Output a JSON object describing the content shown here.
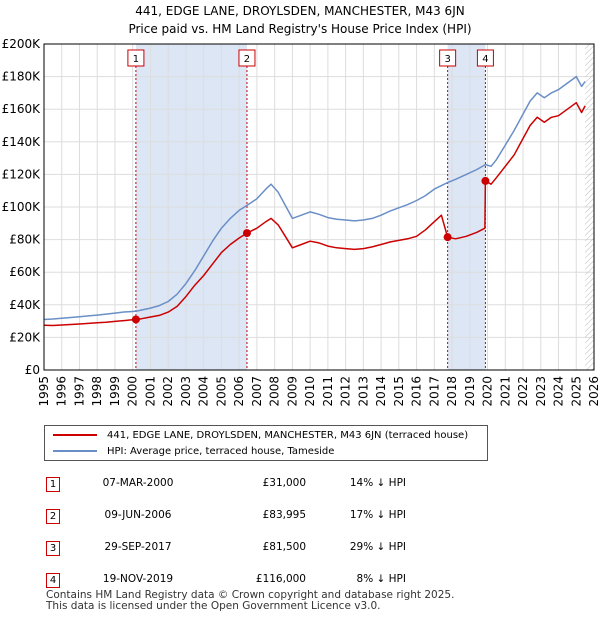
{
  "title": {
    "line1": "441, EDGE LANE, DROYLSDEN, MANCHESTER, M43 6JN",
    "line2": "Price paid vs. HM Land Registry's House Price Index (HPI)"
  },
  "colors": {
    "property": "#cc0000",
    "hpi": "#6a8fc7",
    "shade": "#dce6f5",
    "grid": "#dddddd",
    "marker": "#cc0000"
  },
  "chart_data": {
    "type": "line",
    "title": "Price paid vs. HM Land Registry's House Price Index (HPI)",
    "xlabel": "",
    "ylabel": "",
    "xlim": [
      1995,
      2026
    ],
    "ylim": [
      0,
      200000
    ],
    "grid": true,
    "x_ticks": [
      "1995",
      "1996",
      "1997",
      "1998",
      "1999",
      "2000",
      "2001",
      "2002",
      "2003",
      "2004",
      "2005",
      "2006",
      "2007",
      "2008",
      "2009",
      "2010",
      "2011",
      "2012",
      "2013",
      "2014",
      "2015",
      "2016",
      "2017",
      "2018",
      "2019",
      "2020",
      "2021",
      "2022",
      "2023",
      "2024",
      "2025",
      "2026"
    ],
    "y_ticks": [
      {
        "value": 0,
        "label": "£0"
      },
      {
        "value": 20000,
        "label": "£20K"
      },
      {
        "value": 40000,
        "label": "£40K"
      },
      {
        "value": 60000,
        "label": "£60K"
      },
      {
        "value": 80000,
        "label": "£80K"
      },
      {
        "value": 100000,
        "label": "£100K"
      },
      {
        "value": 120000,
        "label": "£120K"
      },
      {
        "value": 140000,
        "label": "£140K"
      },
      {
        "value": 160000,
        "label": "£160K"
      },
      {
        "value": 180000,
        "label": "£180K"
      },
      {
        "value": 200000,
        "label": "£200K"
      }
    ],
    "shaded_ranges": [
      [
        2000.18,
        2006.44
      ],
      [
        2017.75,
        2019.88
      ]
    ],
    "future_hatch_from": 2025.5,
    "series": [
      {
        "name": "441, EDGE LANE, DROYLSDEN, MANCHESTER, M43 6JN (terraced house)",
        "color": "#cc0000",
        "points": [
          [
            1995.0,
            27500
          ],
          [
            1995.5,
            27300
          ],
          [
            1996.0,
            27600
          ],
          [
            1996.5,
            27900
          ],
          [
            1997.0,
            28200
          ],
          [
            1997.5,
            28600
          ],
          [
            1998.0,
            29000
          ],
          [
            1998.5,
            29300
          ],
          [
            1999.0,
            29800
          ],
          [
            1999.5,
            30300
          ],
          [
            2000.18,
            31000
          ],
          [
            2000.5,
            31500
          ],
          [
            2001.0,
            32500
          ],
          [
            2001.5,
            33500
          ],
          [
            2002.0,
            35500
          ],
          [
            2002.5,
            39000
          ],
          [
            2003.0,
            45000
          ],
          [
            2003.5,
            52000
          ],
          [
            2004.0,
            58000
          ],
          [
            2004.5,
            65000
          ],
          [
            2005.0,
            72000
          ],
          [
            2005.5,
            77000
          ],
          [
            2006.0,
            81000
          ],
          [
            2006.44,
            83995
          ],
          [
            2007.0,
            87000
          ],
          [
            2007.5,
            91000
          ],
          [
            2007.8,
            93000
          ],
          [
            2008.2,
            89000
          ],
          [
            2008.6,
            82000
          ],
          [
            2009.0,
            75000
          ],
          [
            2009.5,
            77000
          ],
          [
            2010.0,
            79000
          ],
          [
            2010.5,
            78000
          ],
          [
            2011.0,
            76000
          ],
          [
            2011.5,
            75000
          ],
          [
            2012.0,
            74500
          ],
          [
            2012.5,
            74000
          ],
          [
            2013.0,
            74500
          ],
          [
            2013.5,
            75500
          ],
          [
            2014.0,
            77000
          ],
          [
            2014.5,
            78500
          ],
          [
            2015.0,
            79500
          ],
          [
            2015.5,
            80500
          ],
          [
            2016.0,
            82000
          ],
          [
            2016.5,
            86000
          ],
          [
            2017.0,
            91000
          ],
          [
            2017.4,
            95000
          ],
          [
            2017.75,
            81500
          ],
          [
            2018.2,
            80500
          ],
          [
            2018.8,
            82000
          ],
          [
            2019.4,
            84500
          ],
          [
            2019.85,
            87000
          ],
          [
            2019.88,
            116000
          ],
          [
            2020.2,
            114000
          ],
          [
            2020.5,
            118000
          ],
          [
            2021.0,
            125000
          ],
          [
            2021.5,
            132000
          ],
          [
            2022.0,
            142000
          ],
          [
            2022.4,
            150000
          ],
          [
            2022.8,
            155000
          ],
          [
            2023.2,
            152000
          ],
          [
            2023.6,
            155000
          ],
          [
            2024.0,
            156000
          ],
          [
            2024.5,
            160000
          ],
          [
            2025.0,
            164000
          ],
          [
            2025.3,
            158000
          ],
          [
            2025.5,
            162000
          ]
        ]
      },
      {
        "name": "HPI: Average price, terraced house, Tameside",
        "color": "#6a8fc7",
        "points": [
          [
            1995.0,
            31000
          ],
          [
            1995.5,
            31300
          ],
          [
            1996.0,
            31800
          ],
          [
            1996.5,
            32200
          ],
          [
            1997.0,
            32700
          ],
          [
            1997.5,
            33200
          ],
          [
            1998.0,
            33700
          ],
          [
            1998.5,
            34300
          ],
          [
            1999.0,
            34900
          ],
          [
            1999.5,
            35600
          ],
          [
            2000.18,
            36000
          ],
          [
            2000.5,
            36800
          ],
          [
            2001.0,
            38000
          ],
          [
            2001.5,
            39500
          ],
          [
            2002.0,
            42000
          ],
          [
            2002.5,
            46500
          ],
          [
            2003.0,
            53000
          ],
          [
            2003.5,
            61000
          ],
          [
            2004.0,
            70000
          ],
          [
            2004.5,
            79000
          ],
          [
            2005.0,
            87000
          ],
          [
            2005.5,
            93000
          ],
          [
            2006.0,
            98000
          ],
          [
            2006.44,
            101000
          ],
          [
            2007.0,
            105000
          ],
          [
            2007.5,
            111000
          ],
          [
            2007.8,
            114000
          ],
          [
            2008.2,
            109000
          ],
          [
            2008.6,
            101000
          ],
          [
            2009.0,
            93000
          ],
          [
            2009.5,
            95000
          ],
          [
            2010.0,
            97000
          ],
          [
            2010.5,
            95500
          ],
          [
            2011.0,
            93500
          ],
          [
            2011.5,
            92500
          ],
          [
            2012.0,
            92000
          ],
          [
            2012.5,
            91500
          ],
          [
            2013.0,
            92000
          ],
          [
            2013.5,
            93000
          ],
          [
            2014.0,
            95000
          ],
          [
            2014.5,
            97500
          ],
          [
            2015.0,
            99500
          ],
          [
            2015.5,
            101500
          ],
          [
            2016.0,
            104000
          ],
          [
            2016.5,
            107000
          ],
          [
            2017.0,
            111000
          ],
          [
            2017.75,
            115000
          ],
          [
            2018.2,
            117000
          ],
          [
            2018.8,
            120000
          ],
          [
            2019.4,
            123000
          ],
          [
            2019.88,
            126000
          ],
          [
            2020.2,
            125000
          ],
          [
            2020.5,
            129000
          ],
          [
            2021.0,
            138000
          ],
          [
            2021.5,
            147000
          ],
          [
            2022.0,
            157000
          ],
          [
            2022.4,
            165000
          ],
          [
            2022.8,
            170000
          ],
          [
            2023.2,
            167000
          ],
          [
            2023.6,
            170000
          ],
          [
            2024.0,
            172000
          ],
          [
            2024.5,
            176000
          ],
          [
            2025.0,
            180000
          ],
          [
            2025.3,
            174000
          ],
          [
            2025.5,
            177000
          ]
        ]
      }
    ],
    "markers": [
      {
        "id": "1",
        "x": 2000.18,
        "y": 31000
      },
      {
        "id": "2",
        "x": 2006.44,
        "y": 83995
      },
      {
        "id": "3",
        "x": 2017.75,
        "y": 81500
      },
      {
        "id": "4",
        "x": 2019.88,
        "y": 116000
      }
    ]
  },
  "legend": {
    "property": "441, EDGE LANE, DROYLSDEN, MANCHESTER, M43 6JN (terraced house)",
    "hpi": "HPI: Average price, terraced house, Tameside"
  },
  "sales": [
    {
      "num": "1",
      "date": "07-MAR-2000",
      "price": "£31,000",
      "hpi": "14% ↓ HPI"
    },
    {
      "num": "2",
      "date": "09-JUN-2006",
      "price": "£83,995",
      "hpi": "17% ↓ HPI"
    },
    {
      "num": "3",
      "date": "29-SEP-2017",
      "price": "£81,500",
      "hpi": "29% ↓ HPI"
    },
    {
      "num": "4",
      "date": "19-NOV-2019",
      "price": "£116,000",
      "hpi": "8% ↓ HPI"
    }
  ],
  "footer": {
    "line1": "Contains HM Land Registry data © Crown copyright and database right 2025.",
    "line2": "This data is licensed under the Open Government Licence v3.0."
  }
}
